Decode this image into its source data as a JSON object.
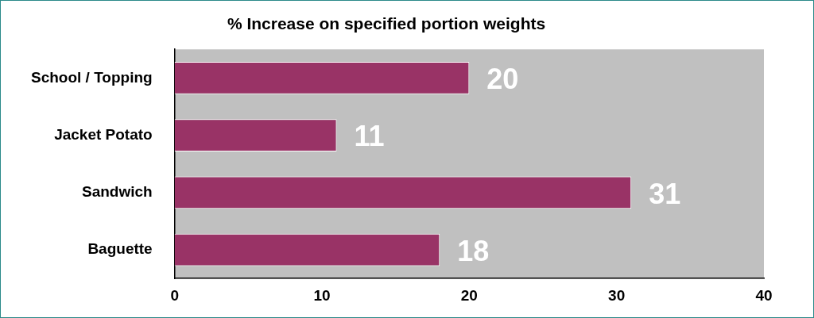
{
  "chart_data": {
    "type": "bar",
    "orientation": "horizontal",
    "title": "% Increase on specified portion weights",
    "categories": [
      "School / Topping",
      "Jacket Potato",
      "Sandwich",
      "Baguette"
    ],
    "values": [
      20,
      11,
      31,
      18
    ],
    "color": "#993366",
    "xlim": [
      0,
      40
    ],
    "xticks": [
      0,
      10,
      20,
      30,
      40
    ],
    "grid": false,
    "legend": false,
    "data_labels": true
  }
}
